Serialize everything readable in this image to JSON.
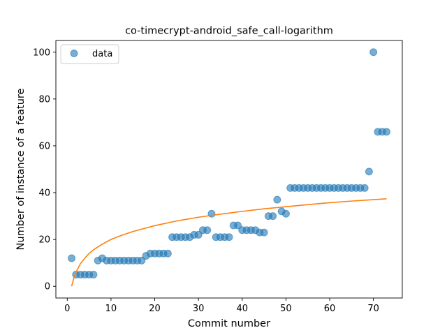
{
  "chart_data": {
    "type": "scatter",
    "title": "co-timecrypt-android_safe_call-logarithm",
    "xlabel": "Commit number",
    "ylabel": "Number of instance of a feature",
    "xlim": [
      -2.6,
      76.6
    ],
    "ylim": [
      -5,
      105
    ],
    "xticks": [
      0,
      10,
      20,
      30,
      40,
      50,
      60,
      70
    ],
    "yticks": [
      0,
      20,
      40,
      60,
      80,
      100
    ],
    "grid": false,
    "legend": {
      "position": "top-left",
      "entries": [
        "data"
      ]
    },
    "series": [
      {
        "name": "data",
        "kind": "scatter",
        "color": "#1f77b4",
        "x": [
          1,
          2,
          3,
          4,
          5,
          6,
          7,
          8,
          9,
          10,
          11,
          12,
          13,
          14,
          15,
          16,
          17,
          18,
          19,
          20,
          21,
          22,
          23,
          24,
          25,
          26,
          27,
          28,
          29,
          30,
          31,
          32,
          33,
          34,
          35,
          36,
          37,
          38,
          39,
          40,
          41,
          42,
          43,
          44,
          45,
          46,
          47,
          48,
          49,
          50,
          51,
          52,
          53,
          54,
          55,
          56,
          57,
          58,
          59,
          60,
          61,
          62,
          63,
          64,
          65,
          66,
          67,
          68,
          69,
          70,
          71,
          72,
          73
        ],
        "y": [
          12,
          5,
          5,
          5,
          5,
          5,
          11,
          12,
          11,
          11,
          11,
          11,
          11,
          11,
          11,
          11,
          11,
          13,
          14,
          14,
          14,
          14,
          14,
          21,
          21,
          21,
          21,
          21,
          22,
          22,
          24,
          24,
          31,
          21,
          21,
          21,
          21,
          26,
          26,
          24,
          24,
          24,
          24,
          23,
          23,
          30,
          30,
          37,
          32,
          31,
          42,
          42,
          42,
          42,
          42,
          42,
          42,
          42,
          42,
          42,
          42,
          42,
          42,
          42,
          42,
          42,
          42,
          42,
          49,
          100,
          66,
          66,
          66
        ]
      },
      {
        "name": "",
        "kind": "line",
        "color": "#ff7f0e",
        "x": [
          1,
          1.5,
          2,
          3,
          4,
          5,
          6,
          8,
          10,
          12,
          15,
          20,
          25,
          30,
          35,
          40,
          45,
          50,
          55,
          60,
          65,
          70,
          73
        ],
        "y": [
          0,
          3.5,
          6.0,
          9.6,
          12.0,
          14.0,
          15.6,
          18.0,
          20.0,
          21.5,
          23.4,
          25.9,
          27.9,
          29.5,
          30.8,
          32.0,
          33.1,
          34.0,
          34.9,
          35.7,
          36.4,
          37.0,
          37.4
        ]
      }
    ]
  }
}
